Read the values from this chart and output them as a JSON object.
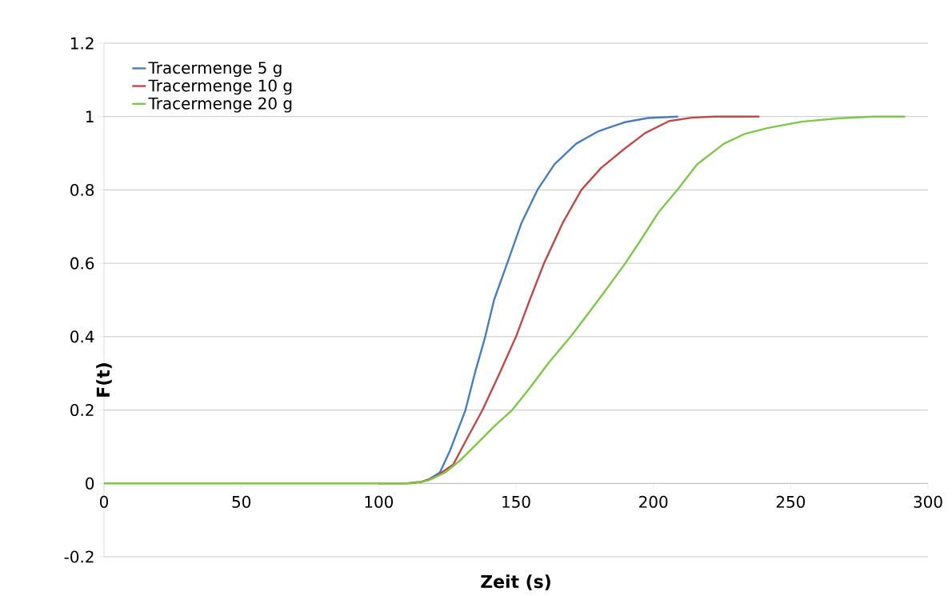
{
  "chart_data": {
    "type": "line",
    "xlabel": "Zeit (s)",
    "ylabel": "F(t)",
    "xlim": [
      0,
      300
    ],
    "ylim": [
      -0.2,
      1.2
    ],
    "xticks": [
      0,
      50,
      100,
      150,
      200,
      250,
      300
    ],
    "yticks": [
      -0.2,
      0,
      0.2,
      0.4,
      0.6,
      0.8,
      1,
      1.2
    ],
    "grid": "y",
    "legend": "top left",
    "marker": "none",
    "line_style": "solid",
    "series": [
      {
        "name": "Tracermenge 5 g",
        "color": "#4a7ebb",
        "x": [
          115,
          118,
          122.3,
          126,
          131.6,
          135,
          138.8,
          142,
          146.8,
          152,
          157.8,
          164,
          171.9,
          180,
          189.3,
          198,
          209
        ],
        "values": [
          0.003,
          0.01,
          0.03,
          0.09,
          0.2,
          0.3,
          0.4,
          0.5,
          0.6,
          0.71,
          0.8,
          0.87,
          0.926,
          0.96,
          0.984,
          0.996,
          1
        ]
      },
      {
        "name": "Tracermenge 10 g",
        "color": "#be4b48",
        "x": [
          100,
          110,
          116,
          120,
          127.2,
          132,
          137.8,
          144,
          150,
          155,
          160.2,
          167,
          173.8,
          181,
          189.3,
          197,
          205.8,
          214,
          222.3,
          238.6
        ],
        "values": [
          0,
          0,
          0.005,
          0.015,
          0.052,
          0.12,
          0.2,
          0.3,
          0.4,
          0.5,
          0.6,
          0.71,
          0.8,
          0.86,
          0.911,
          0.955,
          0.988,
          0.997,
          1,
          1
        ]
      },
      {
        "name": "Tracermenge 20 g",
        "color": "#7fc74a",
        "x": [
          0,
          50,
          100,
          112,
          118,
          124.3,
          130,
          136,
          142,
          148.6,
          155,
          162,
          169.9,
          176,
          182,
          189.8,
          196,
          202,
          208.7,
          216,
          225.7,
          233,
          241.8,
          254,
          267,
          280,
          291.7
        ],
        "values": [
          0,
          0,
          0,
          0,
          0.008,
          0.03,
          0.065,
          0.11,
          0.155,
          0.2,
          0.26,
          0.33,
          0.4,
          0.46,
          0.52,
          0.6,
          0.67,
          0.74,
          0.8,
          0.87,
          0.926,
          0.952,
          0.969,
          0.986,
          0.995,
          1,
          1
        ]
      }
    ]
  }
}
